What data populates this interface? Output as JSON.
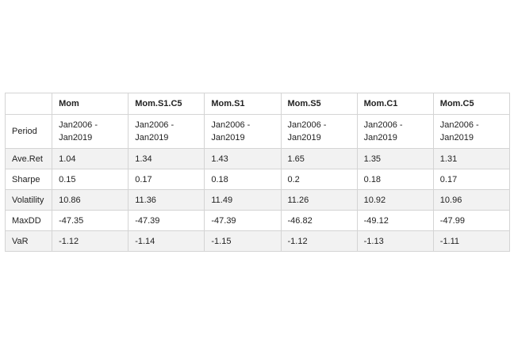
{
  "table": {
    "columns": [
      "",
      "Mom",
      "Mom.S1.C5",
      "Mom.S1",
      "Mom.S5",
      "Mom.C1",
      "Mom.C5"
    ],
    "rows": [
      {
        "label": "Period",
        "cells": [
          [
            "Jan2006 -",
            "Jan2019"
          ],
          [
            "Jan2006 -",
            "Jan2019"
          ],
          [
            "Jan2006 -",
            "Jan2019"
          ],
          [
            "Jan2006 -",
            "Jan2019"
          ],
          [
            "Jan2006 -",
            "Jan2019"
          ],
          [
            "Jan2006 -",
            "Jan2019"
          ]
        ]
      },
      {
        "label": "Ave.Ret",
        "cells": [
          "1.04",
          "1.34",
          "1.43",
          "1.65",
          "1.35",
          "1.31"
        ]
      },
      {
        "label": "Sharpe",
        "cells": [
          "0.15",
          "0.17",
          "0.18",
          "0.2",
          "0.18",
          "0.17"
        ]
      },
      {
        "label": "Volatility",
        "cells": [
          "10.86",
          "11.36",
          "11.49",
          "11.26",
          "10.92",
          "10.96"
        ]
      },
      {
        "label": "MaxDD",
        "cells": [
          "-47.35",
          "-47.39",
          "-47.39",
          "-46.82",
          "-49.12",
          "-47.99"
        ]
      },
      {
        "label": "VaR",
        "cells": [
          "-1.12",
          "-1.14",
          "-1.15",
          "-1.12",
          "-1.13",
          "-1.11"
        ]
      }
    ]
  }
}
